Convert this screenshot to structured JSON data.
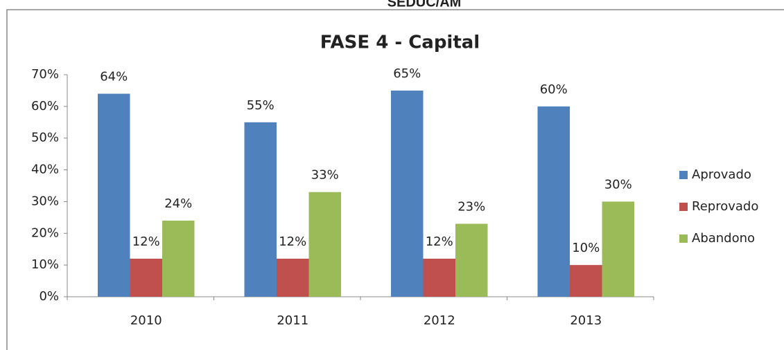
{
  "header": {
    "text": "SEDUC/AM"
  },
  "chart_data": {
    "type": "bar",
    "title": "FASE 4 - Capital",
    "categories": [
      "2010",
      "2011",
      "2012",
      "2013"
    ],
    "series": [
      {
        "name": "Aprovado",
        "color": "#4f81bd",
        "values": [
          64,
          55,
          65,
          60
        ],
        "value_labels": [
          "64%",
          "55%",
          "65%",
          "60%"
        ]
      },
      {
        "name": "Reprovado",
        "color": "#c0504d",
        "values": [
          12,
          12,
          12,
          10
        ],
        "value_labels": [
          "12%",
          "12%",
          "12%",
          "10%"
        ]
      },
      {
        "name": "Abandono",
        "color": "#9bbb59",
        "values": [
          24,
          33,
          23,
          30
        ],
        "value_labels": [
          "24%",
          "33%",
          "23%",
          "30%"
        ]
      }
    ],
    "ylim": [
      0,
      70
    ],
    "yticks": [
      {
        "value": 0,
        "label": "0%"
      },
      {
        "value": 10,
        "label": "10%"
      },
      {
        "value": 20,
        "label": "20%"
      },
      {
        "value": 30,
        "label": "30%"
      },
      {
        "value": 40,
        "label": "40%"
      },
      {
        "value": 50,
        "label": "50%"
      },
      {
        "value": 60,
        "label": "60%"
      },
      {
        "value": 70,
        "label": "70%"
      }
    ],
    "legend": "right"
  }
}
